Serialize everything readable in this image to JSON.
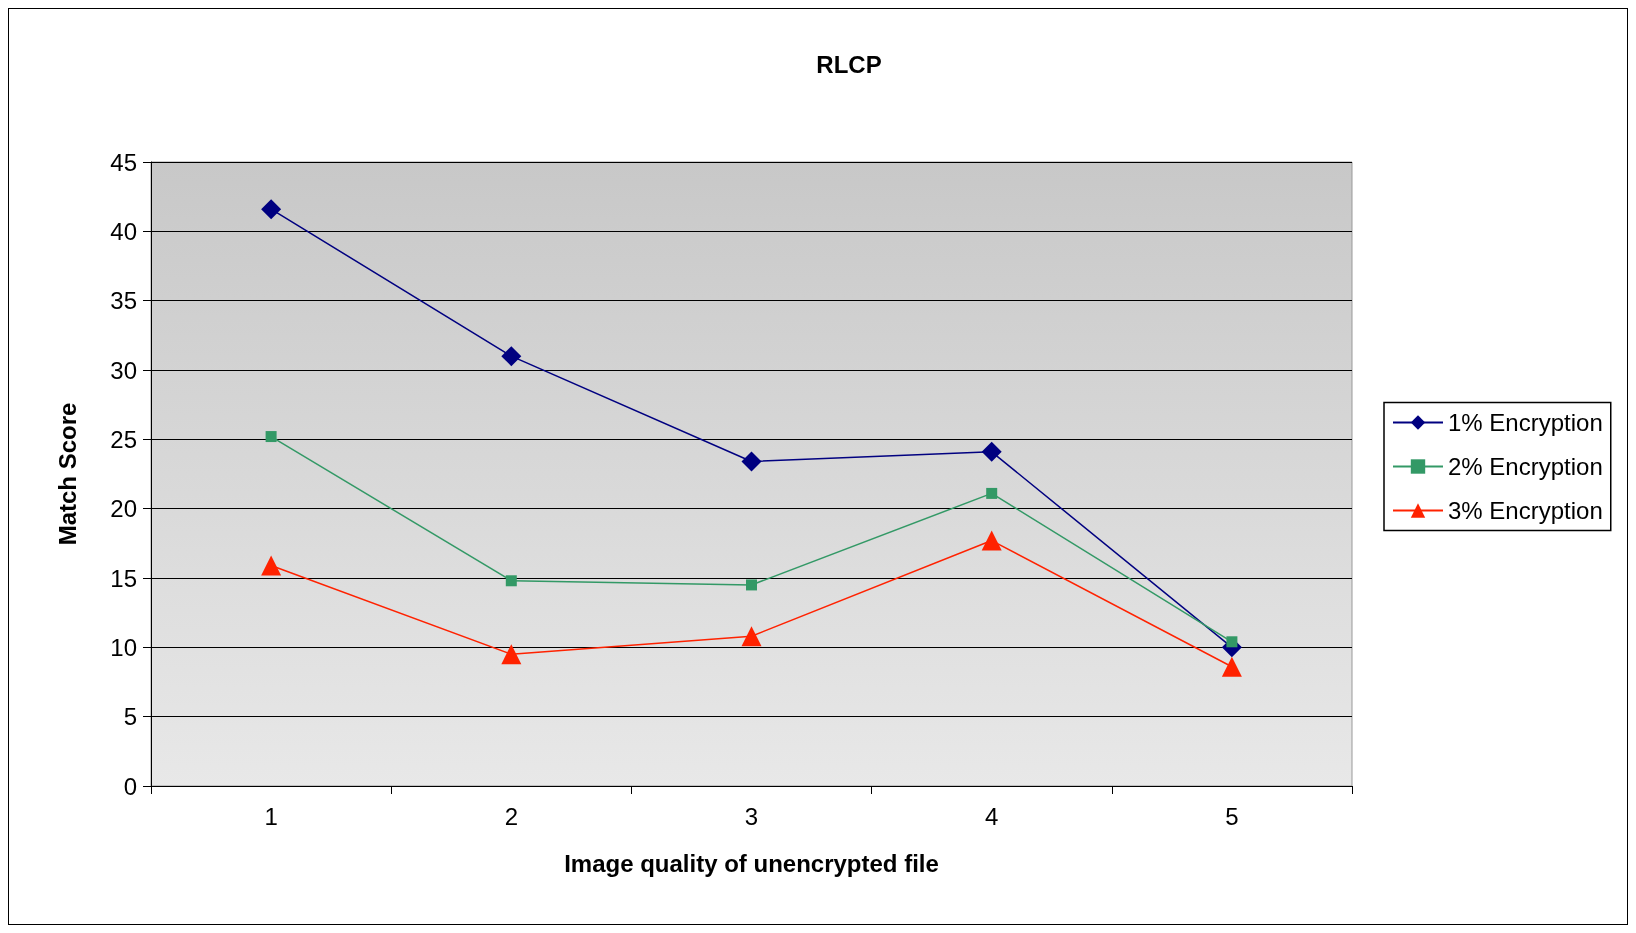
{
  "chart_data": {
    "type": "line",
    "title": "RLCP",
    "xlabel": "Image quality of unencrypted file",
    "ylabel": "Match Score",
    "categories": [
      "1",
      "2",
      "3",
      "4",
      "5"
    ],
    "series": [
      {
        "name": "1% Encryption",
        "color": "#000080",
        "marker": "diamond",
        "values": [
          41.6,
          31.0,
          23.4,
          24.1,
          10.0
        ]
      },
      {
        "name": "2% Encryption",
        "color": "#339966",
        "marker": "square",
        "values": [
          25.2,
          14.8,
          14.5,
          21.1,
          10.4
        ]
      },
      {
        "name": "3% Encryption",
        "color": "#ff2200",
        "marker": "triangle",
        "values": [
          15.9,
          9.5,
          10.8,
          17.7,
          8.6
        ]
      }
    ],
    "ylim": [
      0,
      45
    ],
    "yticks": [
      0,
      5,
      10,
      15,
      20,
      25,
      30,
      35,
      40,
      45
    ],
    "grid": "y",
    "legend": "right"
  }
}
